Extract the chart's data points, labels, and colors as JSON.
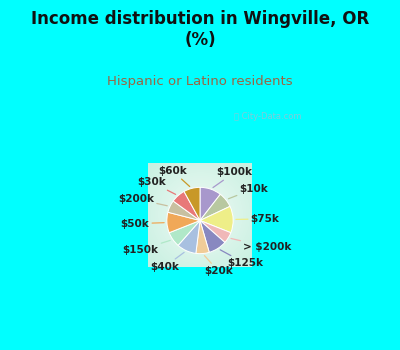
{
  "title": "Income distribution in Wingville, OR\n(%)",
  "subtitle": "Hispanic or Latino residents",
  "title_color": "#111111",
  "subtitle_color": "#996644",
  "bg_cyan": "#00ffff",
  "watermark": "ⓘ City-Data.com",
  "slices": [
    {
      "label": "$100k",
      "value": 10.5,
      "color": "#a898cc"
    },
    {
      "label": "$10k",
      "value": 7.5,
      "color": "#b8c8a0"
    },
    {
      "label": "$75k",
      "value": 13.0,
      "color": "#eeee88"
    },
    {
      "label": "> $200k",
      "value": 5.5,
      "color": "#f0b8b8"
    },
    {
      "label": "$125k",
      "value": 9.0,
      "color": "#8888c0"
    },
    {
      "label": "$20k",
      "value": 6.5,
      "color": "#f0cc98"
    },
    {
      "label": "$40k",
      "value": 9.5,
      "color": "#a8c0e0"
    },
    {
      "label": "$150k",
      "value": 7.5,
      "color": "#b0e8c8"
    },
    {
      "label": "$50k",
      "value": 10.0,
      "color": "#f0a858"
    },
    {
      "label": "$200k",
      "value": 6.0,
      "color": "#c8c0a0"
    },
    {
      "label": "$30k",
      "value": 7.0,
      "color": "#e87878"
    },
    {
      "label": "$60k",
      "value": 8.0,
      "color": "#c89828"
    }
  ],
  "label_fontsize": 7.5,
  "title_fontsize": 12,
  "subtitle_fontsize": 9.5
}
